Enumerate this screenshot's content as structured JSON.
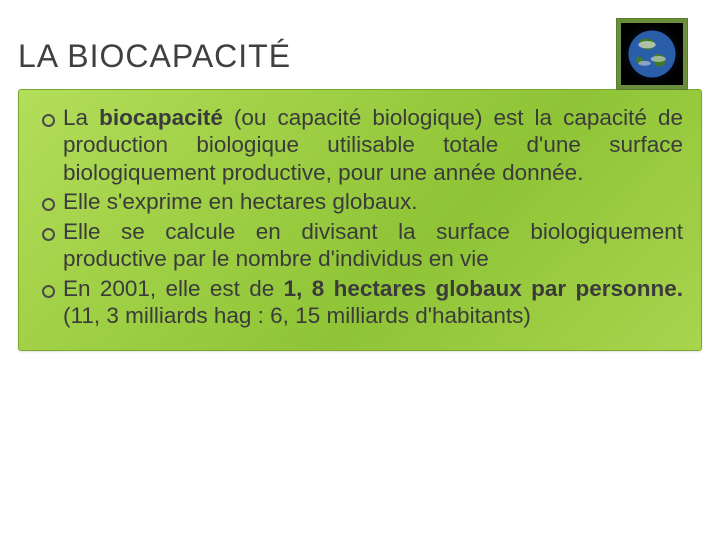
{
  "slide": {
    "title": "LA BIOCAPACITÉ",
    "icon": {
      "name": "earth-icon",
      "frame_color": "#6b8e3a",
      "ocean_color": "#2a5ea8",
      "land_color": "#3f7a2a",
      "cloud_color": "#e8e8e8"
    },
    "content_box": {
      "gradient_from": "#b3de5a",
      "gradient_to": "#8fc436",
      "border_color": "#7aa82f"
    },
    "bullets": [
      {
        "segments": [
          {
            "text": "La ",
            "bold": false
          },
          {
            "text": "biocapacité",
            "bold": true
          },
          {
            "text": " (ou capacité biologique) est la capacité de production biologique utilisable totale d'une surface biologiquement productive, pour une année donnée.",
            "bold": false
          }
        ]
      },
      {
        "segments": [
          {
            "text": "Elle s'exprime en hectares globaux.",
            "bold": false
          }
        ]
      },
      {
        "segments": [
          {
            "text": "Elle se calcule en divisant la surface biologiquement productive par le nombre d'individus en vie",
            "bold": false
          }
        ]
      },
      {
        "segments": [
          {
            "text": "En 2001, elle est de ",
            "bold": false
          },
          {
            "text": "1, 8 hectares globaux par personne.",
            "bold": true
          },
          {
            "text": " (11, 3 milliards hag : 6, 15 milliards d'habitants)",
            "bold": false
          }
        ]
      }
    ],
    "typography": {
      "title_fontsize": 32,
      "title_color": "#404040",
      "body_fontsize": 22.5,
      "body_color": "#3b3b3b",
      "font_family": "Comic Sans MS"
    }
  }
}
